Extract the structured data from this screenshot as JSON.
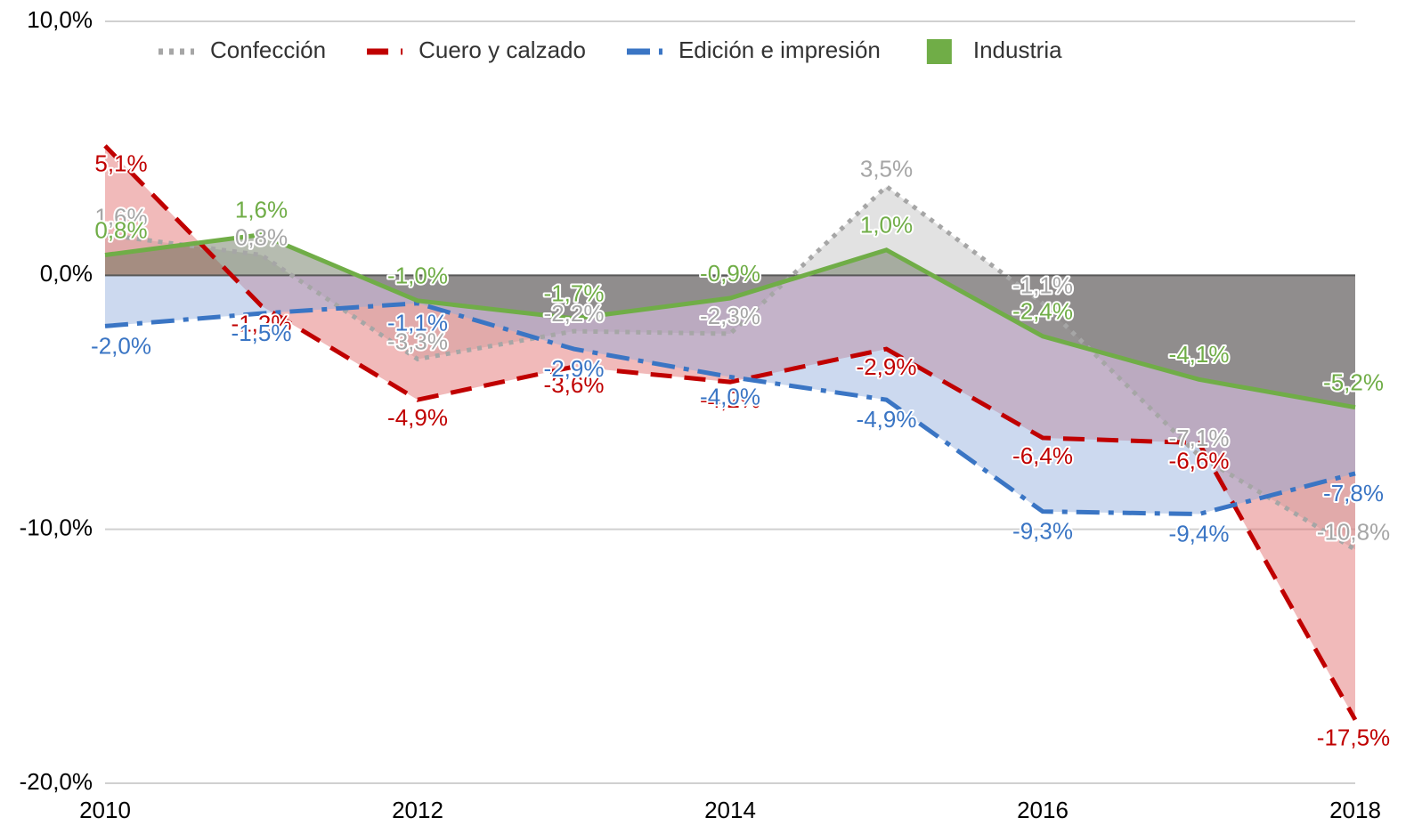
{
  "chart_data": {
    "type": "line",
    "x": [
      2010,
      2011,
      2012,
      2013,
      2014,
      2015,
      2016,
      2017,
      2018
    ],
    "xlim": [
      2010,
      2018
    ],
    "xticks": [
      2010,
      2012,
      2014,
      2016,
      2018
    ],
    "ylim": [
      -20,
      10
    ],
    "yticks": [
      {
        "value": 10,
        "label": "10,0%"
      },
      {
        "value": 0,
        "label": "0,0%"
      },
      {
        "value": -10,
        "label": "-10,0%"
      },
      {
        "value": -20,
        "label": "-20,0%"
      }
    ],
    "grid": true,
    "legend": "top",
    "series": [
      {
        "name": "Confección",
        "color": "#a6a6a6",
        "fill": "#bfbfbf",
        "line_style": "dotted",
        "values": [
          1.6,
          0.8,
          -3.3,
          -2.2,
          -2.3,
          3.5,
          -1.1,
          -7.1,
          -10.8
        ],
        "value_labels": [
          "1,6%",
          "0,8%",
          "-3,3%",
          "-2,2%",
          "-2,3%",
          "3,5%",
          "-1,1%",
          "-7,1%",
          "-10,8%"
        ]
      },
      {
        "name": "Cuero y calzado",
        "color": "#c00000",
        "fill": "#e06666",
        "line_style": "dashed",
        "values": [
          5.1,
          -1.2,
          -4.9,
          -3.6,
          -4.2,
          -2.9,
          -6.4,
          -6.6,
          -17.5
        ],
        "value_labels": [
          "5,1%",
          "-1,2%",
          "-4,9%",
          "-3,6%",
          "-4,2%",
          "-2,9%",
          "-6,4%",
          "-6,6%",
          "-17,5%"
        ]
      },
      {
        "name": "Edición e impresión",
        "color": "#3a75c4",
        "fill": "#8faadc",
        "line_style": "dashdot",
        "values": [
          -2.0,
          -1.5,
          -1.1,
          -2.9,
          -4.0,
          -4.9,
          -9.3,
          -9.4,
          -7.8
        ],
        "value_labels": [
          "-2,0%",
          "-1,5%",
          "-1,1%",
          "-2,9%",
          "-4,0%",
          "-4,9%",
          "-9,3%",
          "-9,4%",
          "-7,8%"
        ]
      },
      {
        "name": "Industria",
        "color": "#70ad47",
        "fill": "#5e6b50",
        "line_style": "solid",
        "values": [
          0.8,
          1.6,
          -1.0,
          -1.7,
          -0.9,
          1.0,
          -2.4,
          -4.1,
          -5.2
        ],
        "value_labels": [
          "0,8%",
          "1,6%",
          "-1,0%",
          "-1,7%",
          "-0,9%",
          "1,0%",
          "-2,4%",
          "-4,1%",
          "-5,2%"
        ]
      }
    ]
  }
}
